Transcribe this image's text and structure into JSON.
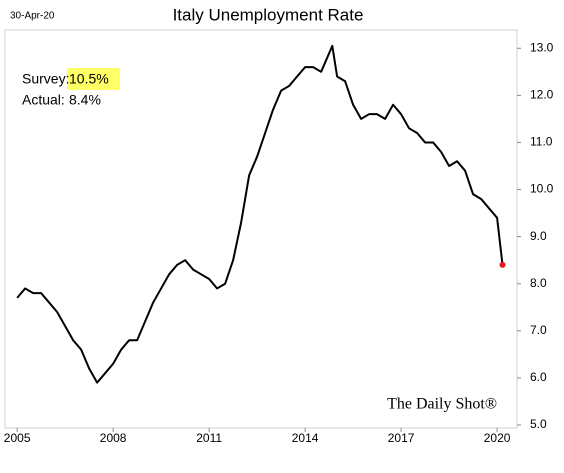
{
  "chart_data": {
    "type": "line",
    "date": "30-Apr-20",
    "title": "Italy Unemployment Rate",
    "annotations": [
      "Survey:",
      "10.5%",
      "Actual:",
      "8.4%"
    ],
    "source": "The Daily Shot®",
    "x": [
      2005.0,
      2005.25,
      2005.5,
      2005.75,
      2006.0,
      2006.25,
      2006.5,
      2006.75,
      2007.0,
      2007.25,
      2007.5,
      2007.75,
      2008.0,
      2008.25,
      2008.5,
      2008.75,
      2009.0,
      2009.25,
      2009.5,
      2009.75,
      2010.0,
      2010.25,
      2010.5,
      2010.75,
      2011.0,
      2011.25,
      2011.5,
      2011.75,
      2012.0,
      2012.25,
      2012.5,
      2012.75,
      2013.0,
      2013.25,
      2013.5,
      2013.75,
      2014.0,
      2014.25,
      2014.5,
      2014.85,
      2015.0,
      2015.25,
      2015.5,
      2015.75,
      2016.0,
      2016.25,
      2016.5,
      2016.75,
      2017.0,
      2017.25,
      2017.5,
      2017.75,
      2018.0,
      2018.25,
      2018.5,
      2018.75,
      2019.0,
      2019.25,
      2019.5,
      2019.75,
      2020.0,
      2020.17
    ],
    "series": [
      {
        "name": "Italy Unemployment Rate",
        "color": "#000000",
        "values": [
          7.7,
          7.9,
          7.8,
          7.8,
          7.6,
          7.4,
          7.1,
          6.8,
          6.6,
          6.2,
          5.9,
          6.1,
          6.3,
          6.6,
          6.8,
          6.8,
          7.2,
          7.6,
          7.9,
          8.2,
          8.4,
          8.5,
          8.3,
          8.2,
          8.1,
          7.9,
          8.0,
          8.5,
          9.3,
          10.3,
          10.7,
          11.2,
          11.7,
          12.1,
          12.2,
          12.4,
          12.6,
          12.6,
          12.5,
          13.05,
          12.4,
          12.3,
          11.8,
          11.5,
          11.6,
          11.6,
          11.5,
          11.8,
          11.6,
          11.3,
          11.2,
          11.0,
          11.0,
          10.8,
          10.5,
          10.6,
          10.4,
          9.9,
          9.8,
          9.6,
          9.4,
          8.4
        ]
      }
    ],
    "last_point_color": "#e8171b",
    "xlim": [
      2004.62,
      2020.56
    ],
    "xticks": [
      2005,
      2008,
      2011,
      2014,
      2017,
      2020
    ],
    "ylim": [
      5,
      13.6
    ],
    "yticks": [
      {
        "value": 5,
        "label": "5.0"
      },
      {
        "value": 6,
        "label": "6.0"
      },
      {
        "value": 7,
        "label": "7.0"
      },
      {
        "value": 8,
        "label": "8.0"
      },
      {
        "value": 9,
        "label": "9.0"
      },
      {
        "value": 10,
        "label": "10.0"
      },
      {
        "value": 11,
        "label": "11.0"
      },
      {
        "value": 12,
        "label": "12.0"
      },
      {
        "value": 13,
        "label": "13.0"
      }
    ]
  }
}
